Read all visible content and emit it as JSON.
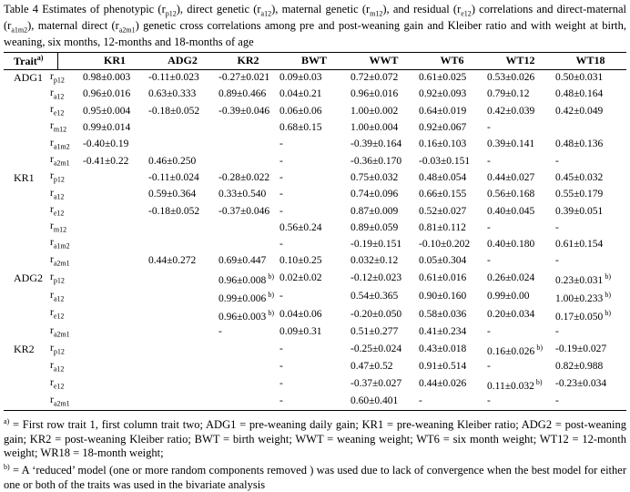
{
  "caption": {
    "segments": [
      {
        "t": "Table 4 Estimates of phenotypic (r"
      },
      {
        "sub": "p12"
      },
      {
        "t": "), direct genetic (r"
      },
      {
        "sub": "a12"
      },
      {
        "t": "), maternal genetic (r"
      },
      {
        "sub": "m12"
      },
      {
        "t": "), and residual (r"
      },
      {
        "sub": "e12"
      },
      {
        "t": ") correlations and direct-maternal (r"
      },
      {
        "sub": "a1m2"
      },
      {
        "t": "), maternal direct (r"
      },
      {
        "sub": "a2m1"
      },
      {
        "t": ") genetic cross correlations among pre and post-weaning gain and Kleiber ratio and with weight at birth, weaning, six months, 12-months and 18-months of age"
      }
    ]
  },
  "table": {
    "header": {
      "trait_label": "Trait",
      "trait_marker": "a)",
      "corr_col_label": "",
      "columns": [
        "KR1",
        "ADG2",
        "KR2",
        "BWT",
        "WWT",
        "WT6",
        "WT12",
        "WT18"
      ]
    },
    "groups": [
      {
        "trait": "ADG1",
        "rows": [
          {
            "base": "r",
            "sub": "p12",
            "cells": [
              "0.98±0.003",
              "-0.11±0.023",
              "-0.27±0.021",
              "0.09±0.03",
              "0.72±0.072",
              "0.61±0.025",
              "0.53±0.026",
              "0.50±0.031"
            ]
          },
          {
            "base": "r",
            "sub": "a12",
            "cells": [
              "0.96±0.016",
              "0.63±0.333",
              "0.89±0.466",
              "0.04±0.21",
              "0.96±0.016",
              "0.92±0.093",
              "0.79±0.12",
              "0.48±0.164"
            ]
          },
          {
            "base": "r",
            "sub": "e12",
            "cells": [
              "0.95±0.004",
              "-0.18±0.052",
              "-0.39±0.046",
              "0.06±0.06",
              "1.00±0.002",
              "0.64±0.019",
              "0.42±0.039",
              "0.42±0.049"
            ]
          },
          {
            "base": "r",
            "sub": "m12",
            "cells": [
              "0.99±0.014",
              "",
              "",
              "0.68±0.15",
              "1.00±0.004",
              "0.92±0.067",
              "-",
              ""
            ]
          },
          {
            "base": "r",
            "sub": "a1m2",
            "cells": [
              "-0.40±0.19",
              "",
              "",
              "-",
              "-0.39±0.164",
              "0.16±0.103",
              "0.39±0.141",
              "0.48±0.136"
            ]
          },
          {
            "base": "r",
            "sub": "a2m1",
            "cells": [
              "-0.41±0.22",
              "0.46±0.250",
              "",
              "-",
              "-0.36±0.170",
              "-0.03±0.151",
              "-",
              "-"
            ]
          }
        ]
      },
      {
        "trait": "KR1",
        "rows": [
          {
            "base": "r",
            "sub": "p12",
            "cells": [
              "",
              "-0.11±0.024",
              "-0.28±0.022",
              "-",
              "0.75±0.032",
              "0.48±0.054",
              "0.44±0.027",
              "0.45±0.032"
            ]
          },
          {
            "base": "r",
            "sub": "a12",
            "cells": [
              "",
              "0.59±0.364",
              "0.33±0.540",
              "-",
              "0.74±0.096",
              "0.66±0.155",
              "0.56±0.168",
              "0.55±0.179"
            ]
          },
          {
            "base": "r",
            "sub": "e12",
            "cells": [
              "",
              "-0.18±0.052",
              "-0.37±0.046",
              "-",
              "0.87±0.009",
              "0.52±0.027",
              "0.40±0.045",
              "0.39±0.051"
            ]
          },
          {
            "base": "r",
            "sub": "m12",
            "cells": [
              "",
              "",
              "",
              "0.56±0.24",
              "0.89±0.059",
              "0.81±0.112",
              "-",
              "-"
            ]
          },
          {
            "base": "r",
            "sub": "a1m2",
            "cells": [
              "",
              "",
              "",
              "-",
              "-0.19±0.151",
              "-0.10±0.202",
              "0.40±0.180",
              "0.61±0.154"
            ]
          },
          {
            "base": "r",
            "sub": "a2m1",
            "cells": [
              "",
              "0.44±0.272",
              "0.69±0.447",
              "0.10±0.25",
              "0.032±0.12",
              "0.05±0.304",
              "-",
              "-"
            ]
          }
        ]
      },
      {
        "trait": "ADG2",
        "rows": [
          {
            "base": "r",
            "sub": "p12",
            "cells": [
              "",
              "",
              "0.96±0.008^b)",
              "0.02±0.02",
              "-0.12±0.023",
              "0.61±0.016",
              "0.26±0.024",
              "0.23±0.031^b)"
            ]
          },
          {
            "base": "r",
            "sub": "a12",
            "cells": [
              "",
              "",
              "0.99±0.006^b)",
              "-",
              "0.54±0.365",
              "0.90±0.160",
              "0.99±0.00",
              "1.00±0.233^b)"
            ]
          },
          {
            "base": "r",
            "sub": "e12",
            "cells": [
              "",
              "",
              "0.96±0.003^b)",
              "0.04±0.06",
              "-0.20±0.050",
              "0.58±0.036",
              "0.20±0.034",
              "0.17±0.050^b)"
            ]
          },
          {
            "base": "r",
            "sub": "a2m1",
            "cells": [
              "",
              "",
              "-",
              "0.09±0.31",
              "0.51±0.277",
              "0.41±0.234",
              "-",
              "-"
            ]
          }
        ]
      },
      {
        "trait": "KR2",
        "rows": [
          {
            "base": "r",
            "sub": "p12",
            "cells": [
              "",
              "",
              "",
              "-",
              "-0.25±0.024",
              "0.43±0.018",
              "0.16±0.026^b)",
              "-0.19±0.027"
            ]
          },
          {
            "base": "r",
            "sub": "a12",
            "cells": [
              "",
              "",
              "",
              "-",
              "0.47±0.52",
              "0.91±0.514",
              "-",
              "0.82±0.988"
            ]
          },
          {
            "base": "r",
            "sub": "e12",
            "cells": [
              "",
              "",
              "",
              "-",
              "-0.37±0.027",
              "0.44±0.026",
              "0.11±0.032^b)",
              "-0.23±0.034"
            ]
          },
          {
            "base": "r",
            "sub": "a2m1",
            "cells": [
              "",
              "",
              "",
              "-",
              "0.60±0.401",
              "-",
              "-",
              "-"
            ]
          }
        ]
      }
    ]
  },
  "footnotes": [
    {
      "marker": "a)",
      "text": "= First row trait 1, first column trait two; ADG1 = pre-weaning daily gain; KR1 = pre-weaning Kleiber ratio; ADG2 = post-weaning gain; KR2 = post-weaning Kleiber ratio; BWT = birth weight; WWT = weaning weight; WT6 = six month weight; WT12 = 12-month weight; WR18 = 18-month weight;"
    },
    {
      "marker": "b)",
      "text": "= A ‘reduced’ model (one or more random components removed ) was used due to lack of convergence when the best model for either one or both of the traits was used in the bivariate analysis"
    }
  ],
  "colors": {
    "text": "#000000",
    "background": "#ffffff",
    "rule": "#000000"
  }
}
